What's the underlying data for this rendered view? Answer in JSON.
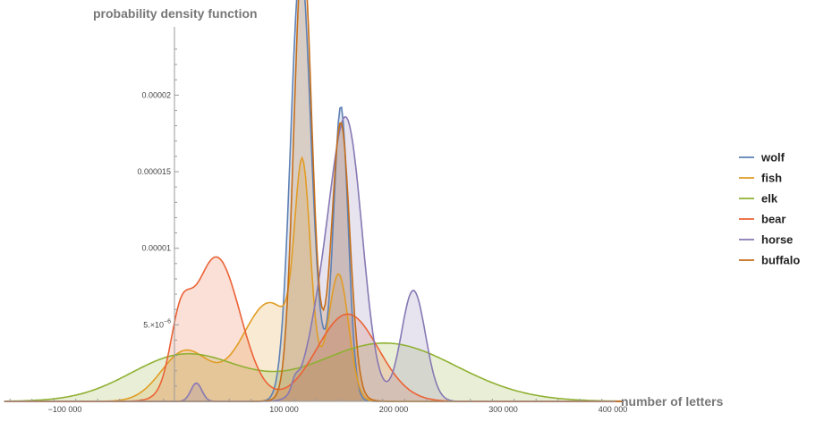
{
  "chart_data": {
    "type": "area",
    "ylabel": "probability density function",
    "xlabel": "number of letters",
    "xlim": [
      -155000,
      410000
    ],
    "ylim": [
      0,
      2.45e-05
    ],
    "x_ticks": [
      {
        "value": -100000,
        "label": "−100 000"
      },
      {
        "value": 100000,
        "label": "100 000"
      },
      {
        "value": 200000,
        "label": "200 000"
      },
      {
        "value": 300000,
        "label": "300 000"
      },
      {
        "value": 400000,
        "label": "400 000"
      }
    ],
    "y_ticks": [
      {
        "value": 5e-06,
        "label": "5.×10",
        "exp": "−6"
      },
      {
        "value": 1e-05,
        "label": "0.00001"
      },
      {
        "value": 1.5e-05,
        "label": "0.000015"
      },
      {
        "value": 2e-05,
        "label": "0.00002"
      }
    ],
    "legend_position": "right",
    "series": [
      {
        "name": "wolf",
        "color": "#5e81b5",
        "components": [
          [
            0.62,
            115000,
            9000
          ],
          [
            0.3,
            152000,
            6500
          ],
          [
            0.08,
            132000,
            15000
          ]
        ]
      },
      {
        "name": "fish",
        "color": "#e19c24",
        "components": [
          [
            0.18,
            10000,
            22000
          ],
          [
            0.42,
            87000,
            26000
          ],
          [
            0.22,
            117000,
            7000
          ],
          [
            0.18,
            150000,
            9000
          ]
        ]
      },
      {
        "name": "elk",
        "color": "#8fb032",
        "components": [
          [
            0.38,
            10000,
            50000
          ],
          [
            0.62,
            192000,
            65000
          ]
        ]
      },
      {
        "name": "bear",
        "color": "#eb6235",
        "components": [
          [
            0.52,
            38000,
            22000
          ],
          [
            0.08,
            5000,
            9000
          ],
          [
            0.4,
            158000,
            28000
          ]
        ]
      },
      {
        "name": "horse",
        "color": "#8778b3",
        "components": [
          [
            0.015,
            20000,
            5000
          ],
          [
            0.6,
            158000,
            14000
          ],
          [
            0.2,
            218000,
            11000
          ],
          [
            0.18,
            135000,
            14000
          ],
          [
            0.005,
            110000,
            3000
          ]
        ]
      },
      {
        "name": "buffalo",
        "color": "#c56e1a",
        "components": [
          [
            0.57,
            117000,
            8000
          ],
          [
            0.34,
            152000,
            8000
          ],
          [
            0.09,
            135000,
            18000
          ]
        ]
      }
    ]
  }
}
